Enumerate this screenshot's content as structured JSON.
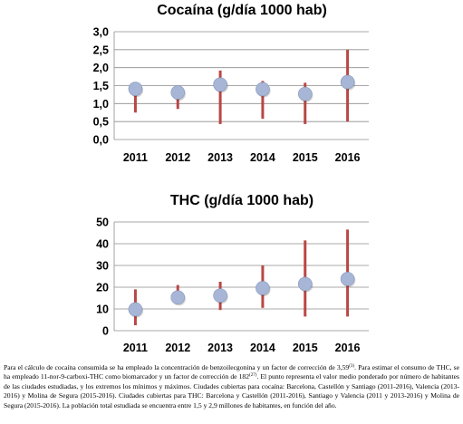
{
  "chart_data": [
    {
      "type": "scatter",
      "title": "Cocaína (g/día 1000 hab)",
      "categories": [
        "2011",
        "2012",
        "2013",
        "2014",
        "2015",
        "2016"
      ],
      "series": [
        {
          "values": [
            1.41,
            1.31,
            1.53,
            1.4,
            1.27,
            1.6
          ],
          "min": [
            0.75,
            0.85,
            0.43,
            0.58,
            0.43,
            0.5
          ],
          "max": [
            1.5,
            1.3,
            1.92,
            1.63,
            1.58,
            2.5
          ]
        }
      ],
      "ylim": [
        0,
        3
      ],
      "yticks": [
        "0,0",
        "0,5",
        "1,0",
        "1,5",
        "2,0",
        "2,5",
        "3,0"
      ],
      "grid": true,
      "colors": {
        "range": "#b84745",
        "point": "#a7b6d6"
      }
    },
    {
      "type": "scatter",
      "title": "THC (g/día 1000 hab)",
      "categories": [
        "2011",
        "2012",
        "2013",
        "2014",
        "2015",
        "2016"
      ],
      "series": [
        {
          "values": [
            9.8,
            15.3,
            16.2,
            19.6,
            21.5,
            23.8
          ],
          "min": [
            2.5,
            13.0,
            9.5,
            10.5,
            6.5,
            6.5
          ],
          "max": [
            19.0,
            21.0,
            22.5,
            30.0,
            41.5,
            46.5
          ]
        }
      ],
      "ylim": [
        0,
        50
      ],
      "yticks": [
        "0",
        "10",
        "20",
        "30",
        "40",
        "50"
      ],
      "grid": true,
      "colors": {
        "range": "#b84745",
        "point": "#a7b6d6"
      }
    }
  ],
  "caption": {
    "p1": "Para el cálculo de cocaína consumida se ha empleado la concentración de benzoilecgonina y un factor de corrección de 3,59",
    "ref1": "(3)",
    "p2": ". Para estimar el consumo de THC, se ha empleado 11-nor-9-carboxi-THC como biomarcador y un factor de corrección de 182",
    "ref2": "(27)",
    "p3": ". El punto representa el valor medio ponderado por número de habitantes de las ciudades estudiadas, y los extremos los mínimos y máximos. Ciudades cubiertas para cocaína: Barcelona, Castellón y Santiago (2011-2016), Valencia (2013-2016) y Molina de Segura (2015-2016). Ciudades cubiertas para THC: Barcelona y Castellón (2011-2016), Santiago y Valencia (2011 y 2013-2016) y Molina de Segura (2015-2016). La población total estudiada se encuentra entre 1,5 y 2,9 millones de habitantes, en función del año."
  }
}
